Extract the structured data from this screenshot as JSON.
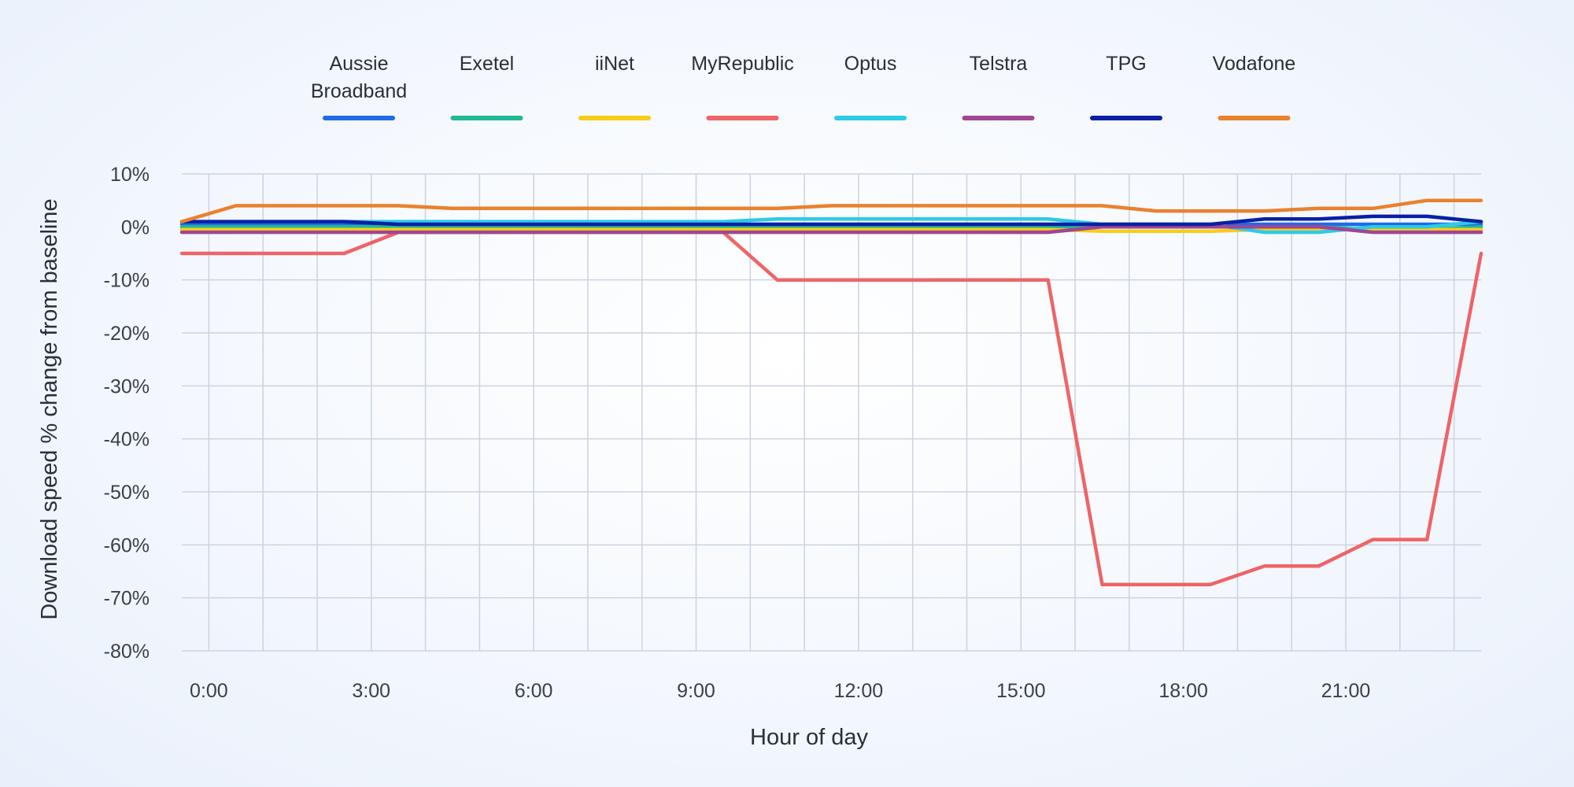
{
  "chart_data": {
    "type": "line",
    "title": "",
    "xlabel": "Hour of day",
    "ylabel": "Download speed % change from baseline",
    "ylim": [
      -80,
      10
    ],
    "yticks": [
      "10%",
      "0%",
      "-10%",
      "-20%",
      "-30%",
      "-40%",
      "-50%",
      "-60%",
      "-70%",
      "-80%"
    ],
    "ytick_values": [
      10,
      0,
      -10,
      -20,
      -30,
      -40,
      -50,
      -60,
      -70,
      -80
    ],
    "xlim": [
      -0.5,
      23.5
    ],
    "xticks": [
      "0:00",
      "3:00",
      "6:00",
      "9:00",
      "12:00",
      "15:00",
      "18:00",
      "21:00"
    ],
    "xtick_values": [
      0,
      3,
      6,
      9,
      12,
      15,
      18,
      21
    ],
    "grid": true,
    "legend_position": "top",
    "x": [
      -0.5,
      0.5,
      1.5,
      2.5,
      3.5,
      4.5,
      5.5,
      6.5,
      7.5,
      8.5,
      9.5,
      10.5,
      11.5,
      12.5,
      13.5,
      14.5,
      15.5,
      16.5,
      17.5,
      18.5,
      19.5,
      20.5,
      21.5,
      22.5,
      23.5
    ],
    "series": [
      {
        "name": "Aussie Broadband",
        "legend_lines": [
          "Aussie",
          "Broadband"
        ],
        "color": "#1e6be6",
        "values": [
          0.5,
          0.5,
          0.5,
          0.5,
          0.5,
          0.5,
          0.5,
          0.5,
          0.5,
          0.5,
          0.5,
          0.5,
          0.5,
          0.5,
          0.5,
          0.5,
          0.5,
          0.5,
          0.5,
          0.5,
          0.5,
          0.5,
          0.5,
          0.5,
          0.5
        ]
      },
      {
        "name": "Exetel",
        "legend_lines": [
          "Exetel"
        ],
        "color": "#1fb996",
        "values": [
          0,
          0,
          0,
          0,
          0,
          0,
          0,
          0,
          0,
          0,
          0,
          0,
          0,
          0,
          0,
          0,
          0,
          0,
          0,
          0,
          0,
          0,
          -0.5,
          -0.5,
          0
        ]
      },
      {
        "name": "iiNet",
        "legend_lines": [
          "iiNet"
        ],
        "color": "#f7cd18",
        "values": [
          -0.5,
          -0.5,
          -0.5,
          -0.5,
          -0.5,
          -0.5,
          -0.5,
          -0.5,
          -0.5,
          -0.5,
          -0.5,
          -0.5,
          -0.5,
          -0.5,
          -0.5,
          -0.5,
          -0.5,
          -0.8,
          -0.8,
          -0.8,
          -0.5,
          -0.5,
          -0.5,
          -0.5,
          -0.5
        ]
      },
      {
        "name": "MyRepublic",
        "legend_lines": [
          "MyRepublic"
        ],
        "color": "#ee6467",
        "values": [
          -5,
          -5,
          -5,
          -5,
          -1,
          -1,
          -1,
          -1,
          -1,
          -1,
          -1,
          -10,
          -10,
          -10,
          -10,
          -10,
          -10,
          -67.5,
          -67.5,
          -67.5,
          -64,
          -64,
          -59,
          -59,
          -5
        ]
      },
      {
        "name": "Optus",
        "legend_lines": [
          "Optus"
        ],
        "color": "#2ccbe6",
        "values": [
          1,
          1,
          1,
          1,
          1,
          1,
          1,
          1,
          1,
          1,
          1,
          1.5,
          1.5,
          1.5,
          1.5,
          1.5,
          1.5,
          0.5,
          0.5,
          0.5,
          -1,
          -1,
          0,
          0,
          1
        ]
      },
      {
        "name": "Telstra",
        "legend_lines": [
          "Telstra"
        ],
        "color": "#a14595",
        "values": [
          -1,
          -1,
          -1,
          -1,
          -1,
          -1,
          -1,
          -1,
          -1,
          -1,
          -1,
          -1,
          -1,
          -1,
          -1,
          -1,
          -1,
          0,
          0,
          0,
          0,
          0,
          -1,
          -1,
          -1
        ]
      },
      {
        "name": "TPG",
        "legend_lines": [
          "TPG"
        ],
        "color": "#0a1fa6",
        "values": [
          1,
          1,
          1,
          1,
          0.5,
          0.5,
          0.5,
          0.5,
          0.5,
          0.5,
          0.5,
          0.5,
          0.5,
          0.5,
          0.5,
          0.5,
          0.5,
          0.5,
          0.5,
          0.5,
          1.5,
          1.5,
          2,
          2,
          1
        ]
      },
      {
        "name": "Vodafone",
        "legend_lines": [
          "Vodafone"
        ],
        "color": "#e9822d",
        "values": [
          1,
          4,
          4,
          4,
          4,
          3.5,
          3.5,
          3.5,
          3.5,
          3.5,
          3.5,
          3.5,
          4,
          4,
          4,
          4,
          4,
          4,
          3,
          3,
          3,
          3.5,
          3.5,
          5,
          5
        ]
      }
    ]
  }
}
